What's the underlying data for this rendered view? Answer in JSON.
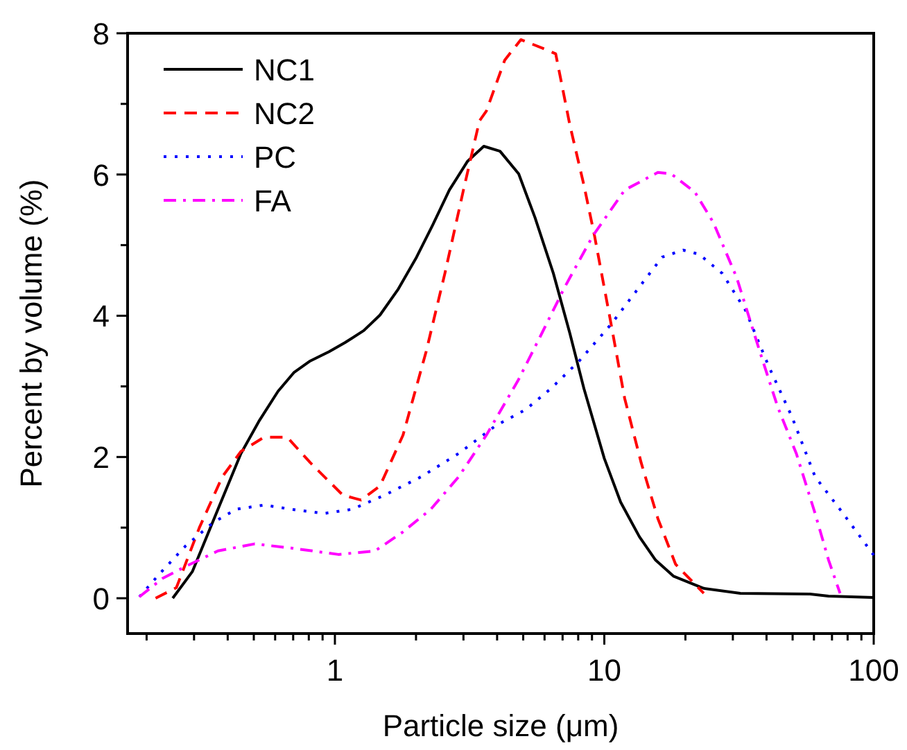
{
  "chart_data": {
    "type": "line",
    "xlabel": "Particle size (μm)",
    "ylabel": "Percent by volume (%)",
    "log": "x",
    "xlim": [
      0.17,
      100
    ],
    "xticks": [
      {
        "value": 0.2,
        "label": null
      },
      {
        "value": 0.3,
        "label": null
      },
      {
        "value": 0.4,
        "label": null
      },
      {
        "value": 0.5,
        "label": null
      },
      {
        "value": 0.6,
        "label": null
      },
      {
        "value": 0.7,
        "label": null
      },
      {
        "value": 0.8,
        "label": null
      },
      {
        "value": 0.9,
        "label": null
      },
      1,
      {
        "value": 2,
        "label": null
      },
      {
        "value": 3,
        "label": null
      },
      {
        "value": 4,
        "label": null
      },
      {
        "value": 5,
        "label": null
      },
      {
        "value": 6,
        "label": null
      },
      {
        "value": 7,
        "label": null
      },
      {
        "value": 8,
        "label": null
      },
      {
        "value": 9,
        "label": null
      },
      10,
      {
        "value": 20,
        "label": null
      },
      {
        "value": 30,
        "label": null
      },
      {
        "value": 40,
        "label": null
      },
      {
        "value": 50,
        "label": null
      },
      {
        "value": 60,
        "label": null
      },
      {
        "value": 70,
        "label": null
      },
      {
        "value": 80,
        "label": null
      },
      {
        "value": 90,
        "label": null
      },
      100
    ],
    "ylim": [
      -0.5,
      8
    ],
    "yticks": [
      0,
      {
        "value": 1,
        "label": null
      },
      2,
      {
        "value": 3,
        "label": null
      },
      4,
      {
        "value": 5,
        "label": null
      },
      6,
      {
        "value": 7,
        "label": null
      },
      8
    ],
    "grid": false,
    "legend": "top left",
    "marker": "none",
    "series": [
      {
        "name": "NC1",
        "color": "#000000",
        "line_style": "solid",
        "x": [
          0.25,
          0.296,
          0.368,
          0.448,
          0.525,
          0.615,
          0.706,
          0.81,
          0.95,
          1.09,
          1.28,
          1.47,
          1.72,
          2.01,
          2.31,
          2.66,
          3.11,
          3.57,
          4.1,
          4.81,
          5.53,
          6.47,
          7.45,
          8.4,
          10,
          11.5,
          13.5,
          15.5,
          18.1,
          23.4,
          32,
          58,
          68,
          100
        ],
        "values": [
          0,
          0.38,
          1.26,
          2.05,
          2.52,
          2.93,
          3.2,
          3.36,
          3.49,
          3.62,
          3.79,
          4.01,
          4.38,
          4.83,
          5.29,
          5.78,
          6.19,
          6.4,
          6.33,
          6.01,
          5.39,
          4.6,
          3.75,
          2.97,
          1.98,
          1.36,
          0.87,
          0.54,
          0.31,
          0.14,
          0.07,
          0.06,
          0.03,
          0.01
        ]
      },
      {
        "name": "NC2",
        "color": "#ff0000",
        "line_style": "dashed",
        "x": [
          0.216,
          0.258,
          0.314,
          0.382,
          0.448,
          0.546,
          0.665,
          0.81,
          1.07,
          1.25,
          1.47,
          1.79,
          2.18,
          2.56,
          3.0,
          3.44,
          3.65,
          4.27,
          4.9,
          5.98,
          6.6,
          7.45,
          8.4,
          9.2,
          10.6,
          11.9,
          13.7,
          15.8,
          18.4,
          23.4
        ],
        "values": [
          0,
          0.15,
          1.0,
          1.72,
          2.08,
          2.28,
          2.28,
          1.92,
          1.46,
          1.39,
          1.59,
          2.31,
          3.49,
          4.6,
          5.78,
          6.76,
          6.9,
          7.62,
          7.91,
          7.78,
          7.71,
          6.7,
          5.85,
          5.13,
          3.88,
          2.83,
          1.92,
          1.13,
          0.48,
          0.07
        ]
      },
      {
        "name": "PC",
        "color": "#0000ff",
        "line_style": "dotted",
        "x": [
          0.188,
          0.224,
          0.279,
          0.353,
          0.43,
          0.546,
          0.69,
          0.91,
          1.16,
          1.53,
          2.09,
          2.88,
          3.94,
          5.1,
          6.34,
          8.07,
          10.6,
          12.9,
          16.4,
          19.6,
          22.5,
          27.4,
          33.4,
          40.7,
          49.7,
          60.6,
          77,
          100
        ],
        "values": [
          0.02,
          0.35,
          0.74,
          1.07,
          1.26,
          1.32,
          1.26,
          1.2,
          1.26,
          1.46,
          1.72,
          2.05,
          2.44,
          2.67,
          2.97,
          3.36,
          3.88,
          4.31,
          4.83,
          4.93,
          4.87,
          4.6,
          4.08,
          3.29,
          2.57,
          1.72,
          1.2,
          0.61
        ]
      },
      {
        "name": "FA",
        "color": "#ff00ff",
        "line_style": "dashdot",
        "x": [
          0.188,
          0.229,
          0.279,
          0.368,
          0.504,
          0.69,
          1.03,
          1.41,
          1.79,
          2.27,
          2.88,
          3.65,
          4.81,
          5.86,
          7.14,
          9.06,
          11.9,
          15.8,
          17.7,
          21.7,
          25.4,
          31,
          37.8,
          44,
          51.6,
          60.6,
          68,
          75
        ],
        "values": [
          0.02,
          0.28,
          0.45,
          0.67,
          0.77,
          0.71,
          0.62,
          0.67,
          0.94,
          1.26,
          1.72,
          2.31,
          3.1,
          3.75,
          4.41,
          5.13,
          5.78,
          6.03,
          6.01,
          5.75,
          5.32,
          4.54,
          3.49,
          2.71,
          2.05,
          1.2,
          0.54,
          0.07
        ]
      }
    ]
  }
}
